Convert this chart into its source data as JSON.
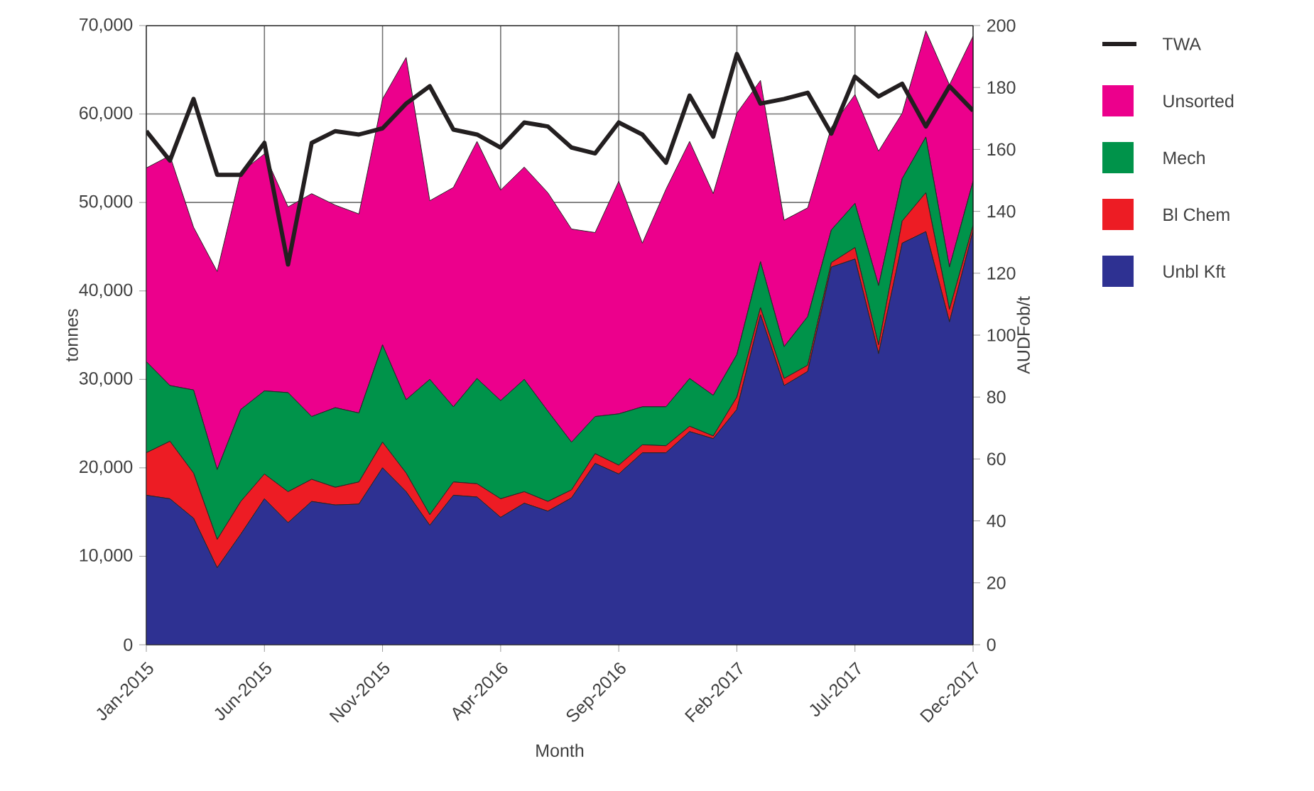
{
  "chart_data": {
    "type": "area",
    "stacked": true,
    "xlabel": "Month",
    "ylabel": "tonnes",
    "y2label": "AUDFob/t",
    "categories": [
      "Jan-2015",
      null,
      null,
      null,
      null,
      "Jun-2015",
      null,
      null,
      null,
      null,
      "Nov-2015",
      null,
      null,
      null,
      null,
      "Apr-2016",
      null,
      null,
      null,
      null,
      "Sep-2016",
      null,
      null,
      null,
      null,
      "Feb-2017",
      null,
      null,
      null,
      null,
      "Jul-2017",
      null,
      null,
      null,
      null,
      "Dec-2017"
    ],
    "series": [
      {
        "name": "Unbl Kft",
        "color": "#2e3192",
        "values": [
          16900,
          16500,
          14300,
          8700,
          12500,
          16500,
          13800,
          16200,
          15800,
          15900,
          20000,
          17300,
          13500,
          16900,
          16700,
          14400,
          16000,
          15100,
          16600,
          20500,
          19300,
          21700,
          21700,
          24100,
          23300,
          26600,
          37300,
          29300,
          30900,
          42700,
          43600,
          32900,
          45400,
          46700,
          36500,
          46800
        ]
      },
      {
        "name": "Bl Chem",
        "color": "#ed1c24",
        "values": [
          4800,
          6500,
          5100,
          3200,
          3700,
          2800,
          3500,
          2500,
          2000,
          2500,
          2900,
          2100,
          1200,
          1500,
          1500,
          2100,
          1300,
          1100,
          900,
          1100,
          1000,
          900,
          800,
          600,
          300,
          1400,
          800,
          800,
          700,
          500,
          1300,
          1000,
          2500,
          4400,
          1400,
          600
        ]
      },
      {
        "name": "Mech",
        "color": "#00934a",
        "values": [
          10300,
          6300,
          9400,
          7900,
          10400,
          9400,
          11200,
          7100,
          9000,
          7800,
          11000,
          8300,
          15300,
          8500,
          11900,
          11100,
          12700,
          10200,
          5400,
          4200,
          5800,
          4300,
          4400,
          5400,
          4600,
          4800,
          5200,
          3600,
          5500,
          3700,
          5000,
          6700,
          4800,
          6300,
          4800,
          5000
        ]
      },
      {
        "name": "Unsorted",
        "color": "#ec008c",
        "values": [
          21900,
          26000,
          18400,
          22400,
          26800,
          26800,
          21000,
          25200,
          22900,
          22500,
          27800,
          38700,
          20200,
          24800,
          26800,
          23800,
          24000,
          24700,
          24100,
          20800,
          26300,
          18500,
          24600,
          26800,
          22800,
          27300,
          20500,
          14300,
          12300,
          11600,
          12300,
          15200,
          7400,
          12000,
          20600,
          16400
        ]
      },
      {
        "name": "TWA",
        "type": "line",
        "axis": "y2",
        "color": "#231f20",
        "values": [
          165.9,
          156.4,
          176.3,
          151.8,
          151.8,
          162.1,
          122.8,
          162.1,
          165.9,
          164.8,
          166.8,
          174.8,
          180.4,
          166.4,
          164.8,
          160.6,
          168.7,
          167.4,
          160.6,
          158.7,
          168.7,
          164.8,
          155.7,
          177.4,
          164.1,
          190.8,
          174.8,
          176.3,
          178.3,
          165.1,
          183.5,
          177.1,
          181.2,
          167.4,
          180.4,
          172.5
        ]
      }
    ],
    "ylim": [
      0,
      70000
    ],
    "yticks": [
      0,
      {
        "value": 10000,
        "label": "10,000"
      },
      {
        "value": 20000,
        "label": "20,000"
      },
      {
        "value": 30000,
        "label": "30,000"
      },
      {
        "value": 40000,
        "label": "40,000"
      },
      {
        "value": 50000,
        "label": "50,000"
      },
      {
        "value": 60000,
        "label": "60,000"
      },
      {
        "value": 70000,
        "label": "70,000"
      }
    ],
    "y2lim": [
      0,
      200
    ],
    "y2ticks": [
      0,
      20,
      40,
      60,
      80,
      100,
      120,
      140,
      160,
      180,
      200
    ],
    "grid": true,
    "legend": "right"
  }
}
